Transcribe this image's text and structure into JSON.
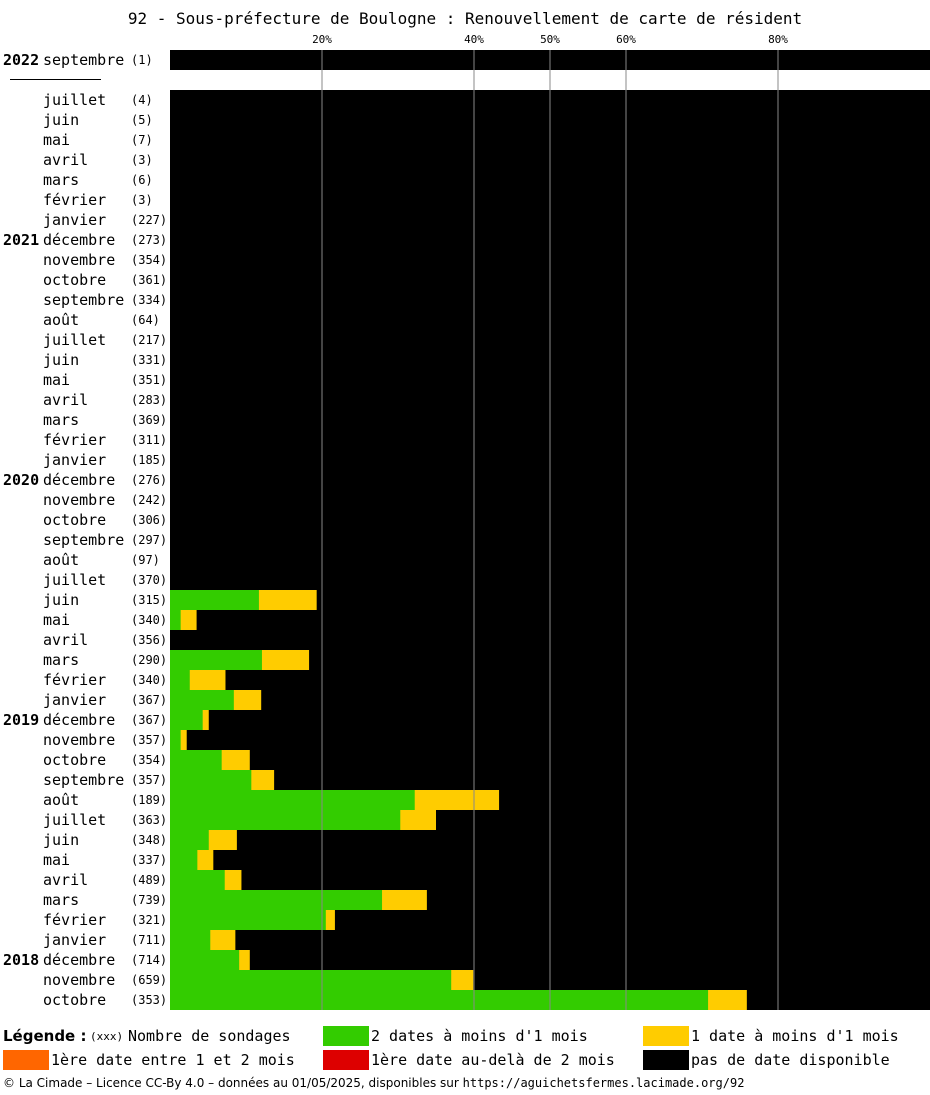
{
  "colors": {
    "green": "#33cc00",
    "yellow": "#ffcc00",
    "orange": "#ff6600",
    "red": "#dd0000",
    "black": "#000000",
    "grid": "#888888"
  },
  "chart_data": {
    "type": "bar",
    "orientation": "horizontal-stacked-percent",
    "title": "92 - Sous-préfecture de Boulogne : Renouvellement de carte de résident",
    "ticks": [
      "20%",
      "40%",
      "50%",
      "60%",
      "80%"
    ],
    "tick_values": [
      20,
      40,
      50,
      60,
      80
    ],
    "xlim": [
      0,
      100
    ],
    "series_order": [
      "green",
      "yellow",
      "orange",
      "red",
      "black"
    ],
    "rows": [
      {
        "year": "2022",
        "month": "septembre",
        "count": "(1)",
        "green": 0,
        "yellow": 0,
        "orange": 0,
        "red": 0,
        "black": 100
      },
      {
        "gap": true
      },
      {
        "year": "",
        "month": "juillet",
        "count": "(4)",
        "green": 0,
        "yellow": 0,
        "orange": 0,
        "red": 0,
        "black": 100
      },
      {
        "year": "",
        "month": "juin",
        "count": "(5)",
        "green": 0,
        "yellow": 0,
        "orange": 0,
        "red": 0,
        "black": 100
      },
      {
        "year": "",
        "month": "mai",
        "count": "(7)",
        "green": 0,
        "yellow": 0,
        "orange": 0,
        "red": 0,
        "black": 100
      },
      {
        "year": "",
        "month": "avril",
        "count": "(3)",
        "green": 0,
        "yellow": 0,
        "orange": 0,
        "red": 0,
        "black": 100
      },
      {
        "year": "",
        "month": "mars",
        "count": "(6)",
        "green": 0,
        "yellow": 0,
        "orange": 0,
        "red": 0,
        "black": 100
      },
      {
        "year": "",
        "month": "février",
        "count": "(3)",
        "green": 0,
        "yellow": 0,
        "orange": 0,
        "red": 0,
        "black": 100
      },
      {
        "year": "",
        "month": "janvier",
        "count": "(227)",
        "green": 0,
        "yellow": 0,
        "orange": 0,
        "red": 0,
        "black": 100
      },
      {
        "year": "2021",
        "month": "décembre",
        "count": "(273)",
        "green": 0,
        "yellow": 0,
        "orange": 0,
        "red": 0,
        "black": 100
      },
      {
        "year": "",
        "month": "novembre",
        "count": "(354)",
        "green": 0,
        "yellow": 0,
        "orange": 0,
        "red": 0,
        "black": 100
      },
      {
        "year": "",
        "month": "octobre",
        "count": "(361)",
        "green": 0,
        "yellow": 0,
        "orange": 0,
        "red": 0,
        "black": 100
      },
      {
        "year": "",
        "month": "septembre",
        "count": "(334)",
        "green": 0,
        "yellow": 0,
        "orange": 0,
        "red": 0,
        "black": 100
      },
      {
        "year": "",
        "month": "août",
        "count": "(64)",
        "green": 0,
        "yellow": 0,
        "orange": 0,
        "red": 0,
        "black": 100
      },
      {
        "year": "",
        "month": "juillet",
        "count": "(217)",
        "green": 0,
        "yellow": 0,
        "orange": 0,
        "red": 0,
        "black": 100
      },
      {
        "year": "",
        "month": "juin",
        "count": "(331)",
        "green": 0,
        "yellow": 0,
        "orange": 0,
        "red": 0,
        "black": 100
      },
      {
        "year": "",
        "month": "mai",
        "count": "(351)",
        "green": 0,
        "yellow": 0,
        "orange": 0,
        "red": 0,
        "black": 100
      },
      {
        "year": "",
        "month": "avril",
        "count": "(283)",
        "green": 0,
        "yellow": 0,
        "orange": 0,
        "red": 0,
        "black": 100
      },
      {
        "year": "",
        "month": "mars",
        "count": "(369)",
        "green": 0,
        "yellow": 0,
        "orange": 0,
        "red": 0,
        "black": 100
      },
      {
        "year": "",
        "month": "février",
        "count": "(311)",
        "green": 0,
        "yellow": 0,
        "orange": 0,
        "red": 0,
        "black": 100
      },
      {
        "year": "",
        "month": "janvier",
        "count": "(185)",
        "green": 0,
        "yellow": 0,
        "orange": 0,
        "red": 0,
        "black": 100
      },
      {
        "year": "2020",
        "month": "décembre",
        "count": "(276)",
        "green": 0,
        "yellow": 0,
        "orange": 0,
        "red": 0,
        "black": 100
      },
      {
        "year": "",
        "month": "novembre",
        "count": "(242)",
        "green": 0,
        "yellow": 0,
        "orange": 0,
        "red": 0,
        "black": 100
      },
      {
        "year": "",
        "month": "octobre",
        "count": "(306)",
        "green": 0,
        "yellow": 0,
        "orange": 0,
        "red": 0,
        "black": 100
      },
      {
        "year": "",
        "month": "septembre",
        "count": "(297)",
        "green": 0,
        "yellow": 0,
        "orange": 0,
        "red": 0,
        "black": 100
      },
      {
        "year": "",
        "month": "août",
        "count": "(97)",
        "green": 0,
        "yellow": 0,
        "orange": 0,
        "red": 0,
        "black": 100
      },
      {
        "year": "",
        "month": "juillet",
        "count": "(370)",
        "green": 0,
        "yellow": 0,
        "orange": 0,
        "red": 0,
        "black": 100
      },
      {
        "year": "",
        "month": "juin",
        "count": "(315)",
        "green": 11.7,
        "yellow": 7.6,
        "orange": 0,
        "red": 0,
        "black": 80.7
      },
      {
        "year": "",
        "month": "mai",
        "count": "(340)",
        "green": 1.4,
        "yellow": 2.1,
        "orange": 0,
        "red": 0,
        "black": 96.5
      },
      {
        "year": "",
        "month": "avril",
        "count": "(356)",
        "green": 0,
        "yellow": 0,
        "orange": 0,
        "red": 0,
        "black": 100
      },
      {
        "year": "",
        "month": "mars",
        "count": "(290)",
        "green": 12.1,
        "yellow": 6.2,
        "orange": 0,
        "red": 0,
        "black": 81.7
      },
      {
        "year": "",
        "month": "février",
        "count": "(340)",
        "green": 2.6,
        "yellow": 4.7,
        "orange": 0,
        "red": 0,
        "black": 92.7
      },
      {
        "year": "",
        "month": "janvier",
        "count": "(367)",
        "green": 8.4,
        "yellow": 3.6,
        "orange": 0,
        "red": 0,
        "black": 88.0
      },
      {
        "year": "2019",
        "month": "décembre",
        "count": "(367)",
        "green": 4.3,
        "yellow": 0.8,
        "orange": 0,
        "red": 0,
        "black": 94.9
      },
      {
        "year": "",
        "month": "novembre",
        "count": "(357)",
        "green": 1.4,
        "yellow": 0.8,
        "orange": 0,
        "red": 0,
        "black": 97.8
      },
      {
        "year": "",
        "month": "octobre",
        "count": "(354)",
        "green": 6.8,
        "yellow": 3.7,
        "orange": 0,
        "red": 0,
        "black": 89.5
      },
      {
        "year": "",
        "month": "septembre",
        "count": "(357)",
        "green": 10.7,
        "yellow": 3.0,
        "orange": 0,
        "red": 0,
        "black": 86.3
      },
      {
        "year": "",
        "month": "août",
        "count": "(189)",
        "green": 32.2,
        "yellow": 11.1,
        "orange": 0,
        "red": 0,
        "black": 56.7
      },
      {
        "year": "",
        "month": "juillet",
        "count": "(363)",
        "green": 30.3,
        "yellow": 4.7,
        "orange": 0,
        "red": 0,
        "black": 65.0
      },
      {
        "year": "",
        "month": "juin",
        "count": "(348)",
        "green": 5.1,
        "yellow": 3.7,
        "orange": 0,
        "red": 0,
        "black": 91.2
      },
      {
        "year": "",
        "month": "mai",
        "count": "(337)",
        "green": 3.6,
        "yellow": 2.1,
        "orange": 0,
        "red": 0,
        "black": 94.3
      },
      {
        "year": "",
        "month": "avril",
        "count": "(489)",
        "green": 7.2,
        "yellow": 2.2,
        "orange": 0,
        "red": 0,
        "black": 90.6
      },
      {
        "year": "",
        "month": "mars",
        "count": "(739)",
        "green": 27.9,
        "yellow": 5.9,
        "orange": 0,
        "red": 0,
        "black": 66.2
      },
      {
        "year": "",
        "month": "février",
        "count": "(321)",
        "green": 20.5,
        "yellow": 1.2,
        "orange": 0,
        "red": 0,
        "black": 78.3
      },
      {
        "year": "",
        "month": "janvier",
        "count": "(711)",
        "green": 5.3,
        "yellow": 3.3,
        "orange": 0,
        "red": 0,
        "black": 91.4
      },
      {
        "year": "2018",
        "month": "décembre",
        "count": "(714)",
        "green": 9.1,
        "yellow": 1.4,
        "orange": 0,
        "red": 0,
        "black": 89.5
      },
      {
        "year": "",
        "month": "novembre",
        "count": "(659)",
        "green": 37.0,
        "yellow": 2.9,
        "orange": 0,
        "red": 0,
        "black": 60.1
      },
      {
        "year": "",
        "month": "octobre",
        "count": "(353)",
        "green": 70.8,
        "yellow": 5.1,
        "orange": 0,
        "red": 0,
        "black": 24.1
      }
    ]
  },
  "legend": {
    "title": "Légende :",
    "count_hint": "(xxx)",
    "count_label": "Nombre de sondages",
    "green_label": "2 dates à moins d'1 mois",
    "yellow_label": "1 date à moins d'1 mois",
    "orange_label": "1ère date entre 1 et 2 mois",
    "red_label": "1ère date au-delà de 2 mois",
    "black_label": "pas de date disponible"
  },
  "footer": {
    "text": "© La Cimade – Licence CC-By 4.0 – données au 01/05/2025, disponibles sur ",
    "url": "https://aguichetsfermes.lacimade.org/92"
  }
}
